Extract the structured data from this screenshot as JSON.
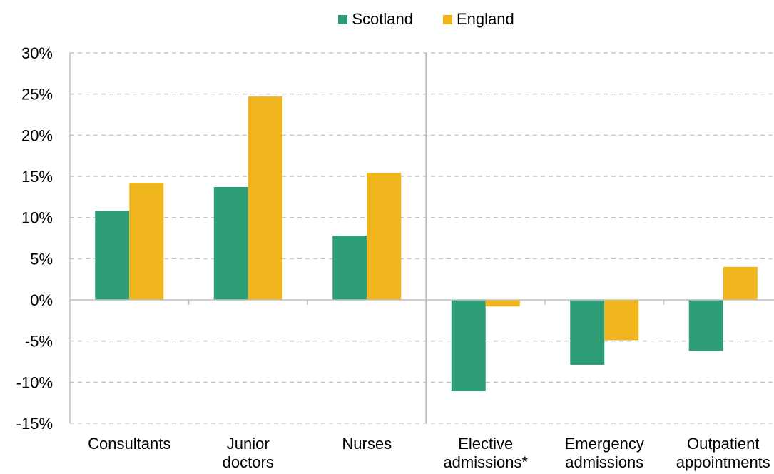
{
  "colors": {
    "scotland": "#2e9e77",
    "england": "#f0b41c",
    "grid": "#bdbdbd",
    "axis": "#bfbfbf",
    "divider": "#bfbfbf"
  },
  "chart_data": {
    "type": "bar",
    "categories": [
      [
        "Consultants"
      ],
      [
        "Junior",
        "doctors"
      ],
      [
        "Nurses"
      ],
      [
        "Elective",
        "admissions*"
      ],
      [
        "Emergency",
        "admissions"
      ],
      [
        "Outpatient",
        "appointments"
      ]
    ],
    "series": [
      {
        "name": "Scotland",
        "values": [
          10.8,
          13.7,
          7.8,
          -11.1,
          -7.9,
          -6.2
        ]
      },
      {
        "name": "England",
        "values": [
          14.2,
          24.7,
          15.4,
          -0.8,
          -4.9,
          4.0
        ]
      }
    ],
    "yticks": [
      "30%",
      "25%",
      "20%",
      "15%",
      "10%",
      "5%",
      "0%",
      "-5%",
      "-10%",
      "-15%"
    ],
    "ylim": [
      -15,
      30
    ],
    "grid": true,
    "legend_position": "top"
  }
}
